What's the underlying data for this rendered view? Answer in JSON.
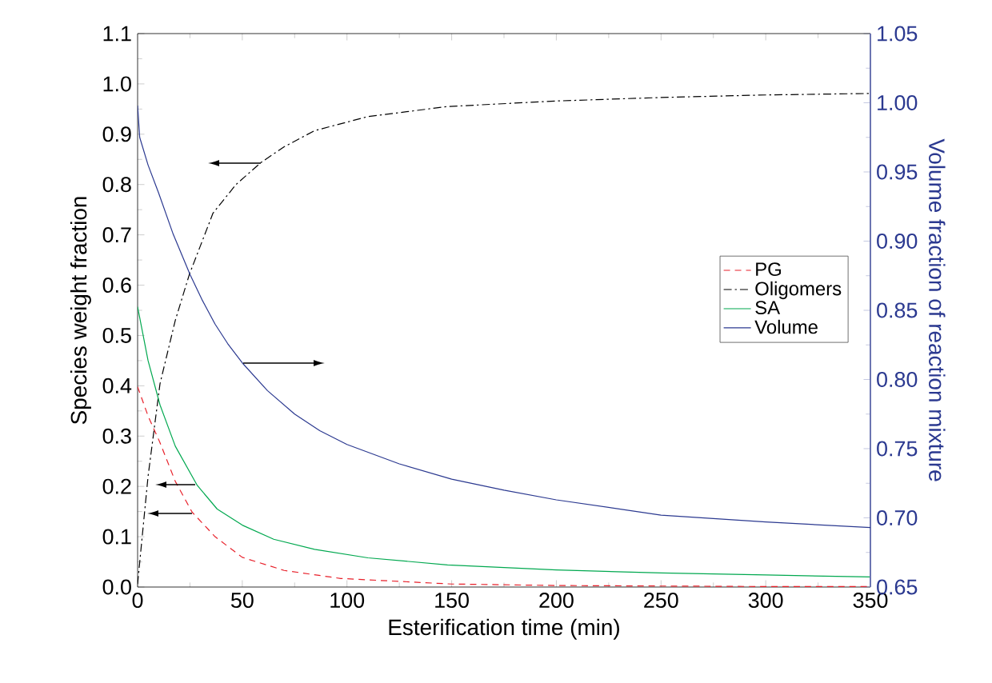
{
  "chart_data": {
    "type": "line",
    "xlabel": "Esterification time (min)",
    "ylabel": "Species weight fraction",
    "y2label": "Volume fraction of reaction mixture",
    "xlim": [
      0,
      350
    ],
    "xticks": [
      0,
      50,
      100,
      150,
      200,
      250,
      300,
      350
    ],
    "ylim": [
      0,
      1.1
    ],
    "yticks": [
      {
        "value": 0,
        "label": "0.0"
      },
      {
        "value": 0.1,
        "label": "0.1"
      },
      {
        "value": 0.2,
        "label": "0.2"
      },
      {
        "value": 0.3,
        "label": "0.3"
      },
      {
        "value": 0.4,
        "label": "0.4"
      },
      {
        "value": 0.5,
        "label": "0.5"
      },
      {
        "value": 0.6,
        "label": "0.6"
      },
      {
        "value": 0.7,
        "label": "0.7"
      },
      {
        "value": 0.8,
        "label": "0.8"
      },
      {
        "value": 0.9,
        "label": "0.9"
      },
      {
        "value": 1.0,
        "label": "1.0"
      },
      {
        "value": 1.1,
        "label": "1.1"
      }
    ],
    "y2lim": [
      0.65,
      1.05
    ],
    "y2ticks": [
      {
        "value": 0.65,
        "label": "0.65"
      },
      {
        "value": 0.7,
        "label": "0.70"
      },
      {
        "value": 0.75,
        "label": "0.75"
      },
      {
        "value": 0.8,
        "label": "0.80"
      },
      {
        "value": 0.85,
        "label": "0.85"
      },
      {
        "value": 0.9,
        "label": "0.90"
      },
      {
        "value": 0.95,
        "label": "0.95"
      },
      {
        "value": 1.0,
        "label": "1.00"
      },
      {
        "value": 1.05,
        "label": "1.05"
      }
    ],
    "legend": "right",
    "grid": false,
    "marker": "none",
    "series": [
      {
        "name": "PG",
        "color": "#e8202a",
        "line_style": "dashed",
        "x": [
          0,
          5,
          10.7,
          18,
          26,
          37,
          50,
          70,
          97,
          150,
          200,
          250,
          300,
          350
        ],
        "values": [
          0.398,
          0.34,
          0.287,
          0.21,
          0.149,
          0.1,
          0.059,
          0.033,
          0.017,
          0.006,
          0.003,
          0.002,
          0.001,
          0.001
        ]
      },
      {
        "name": "Oligomers",
        "color": "#000000",
        "line_style": "dashdot",
        "x": [
          0,
          5,
          10.7,
          18,
          24.7,
          36,
          47,
          59,
          70,
          84.5,
          110,
          148,
          200,
          250,
          300,
          350
        ],
        "values": [
          0.006,
          0.22,
          0.404,
          0.53,
          0.621,
          0.743,
          0.8,
          0.844,
          0.875,
          0.907,
          0.935,
          0.955,
          0.966,
          0.973,
          0.978,
          0.981
        ]
      },
      {
        "name": "SA",
        "color": "#00a84f",
        "x": [
          0,
          5,
          10.7,
          18,
          28.5,
          38,
          50,
          65,
          84.5,
          110,
          148,
          200,
          250,
          300,
          350
        ],
        "values": [
          0.557,
          0.45,
          0.362,
          0.28,
          0.202,
          0.155,
          0.123,
          0.095,
          0.075,
          0.058,
          0.044,
          0.034,
          0.028,
          0.024,
          0.02
        ]
      },
      {
        "name": "Volume",
        "color": "#2b3990",
        "axis": "y2",
        "x": [
          0,
          1,
          5,
          10,
          17,
          25,
          31,
          37,
          43,
          50,
          62,
          75,
          87,
          100,
          125,
          150,
          175,
          200,
          250,
          300,
          350
        ],
        "values": [
          0.998,
          0.975,
          0.955,
          0.935,
          0.905,
          0.876,
          0.857,
          0.84,
          0.826,
          0.812,
          0.792,
          0.775,
          0.763,
          0.753,
          0.739,
          0.728,
          0.72,
          0.713,
          0.702,
          0.697,
          0.693
        ]
      }
    ]
  }
}
